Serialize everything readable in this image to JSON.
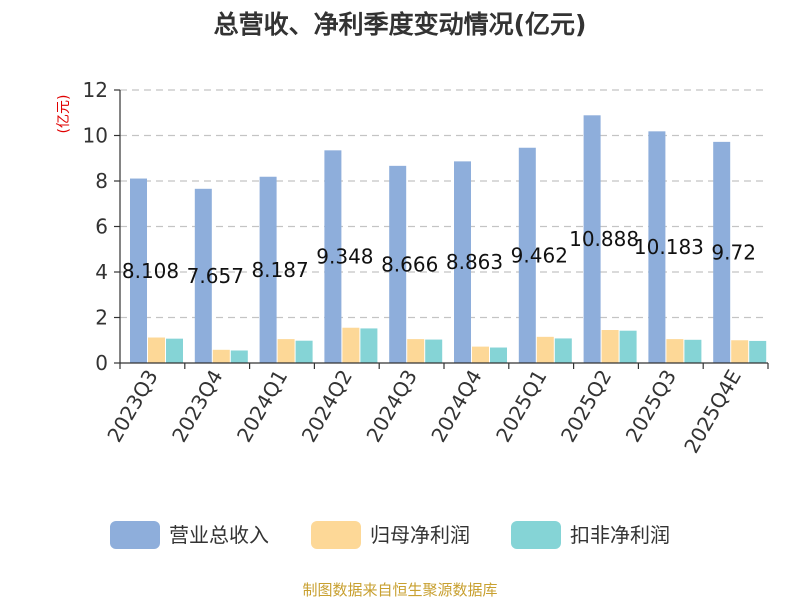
{
  "chart_data": {
    "type": "bar",
    "title": "总营收、净利季度变动情况(亿元)",
    "ylabel": "(亿元)",
    "ylim": [
      0,
      12
    ],
    "yticks": [
      0,
      2,
      4,
      6,
      8,
      10,
      12
    ],
    "grid": true,
    "legend_position": "bottom",
    "categories": [
      "2023Q3",
      "2023Q4",
      "2024Q1",
      "2024Q2",
      "2024Q3",
      "2024Q4",
      "2025Q1",
      "2025Q2",
      "2025Q3",
      "2025Q4E"
    ],
    "series": [
      {
        "name": "营业总收入",
        "color": "#8eaedb",
        "values": [
          8.108,
          7.657,
          8.187,
          9.348,
          8.666,
          8.863,
          9.462,
          10.888,
          10.183,
          9.72
        ],
        "labels": [
          "8.108",
          "7.657",
          "8.187",
          "9.348",
          "8.666",
          "8.863",
          "9.462",
          "10.888",
          "10.183",
          "9.72"
        ]
      },
      {
        "name": "归母净利润",
        "color": "#fdd897",
        "values": [
          1.12,
          0.58,
          1.05,
          1.55,
          1.05,
          0.72,
          1.15,
          1.45,
          1.05,
          1.0
        ]
      },
      {
        "name": "扣非净利润",
        "color": "#85d4d6",
        "values": [
          1.07,
          0.55,
          0.98,
          1.52,
          1.03,
          0.68,
          1.08,
          1.42,
          1.02,
          0.97
        ]
      }
    ]
  },
  "footer": {
    "source": "制图数据来自恒生聚源数据库"
  }
}
